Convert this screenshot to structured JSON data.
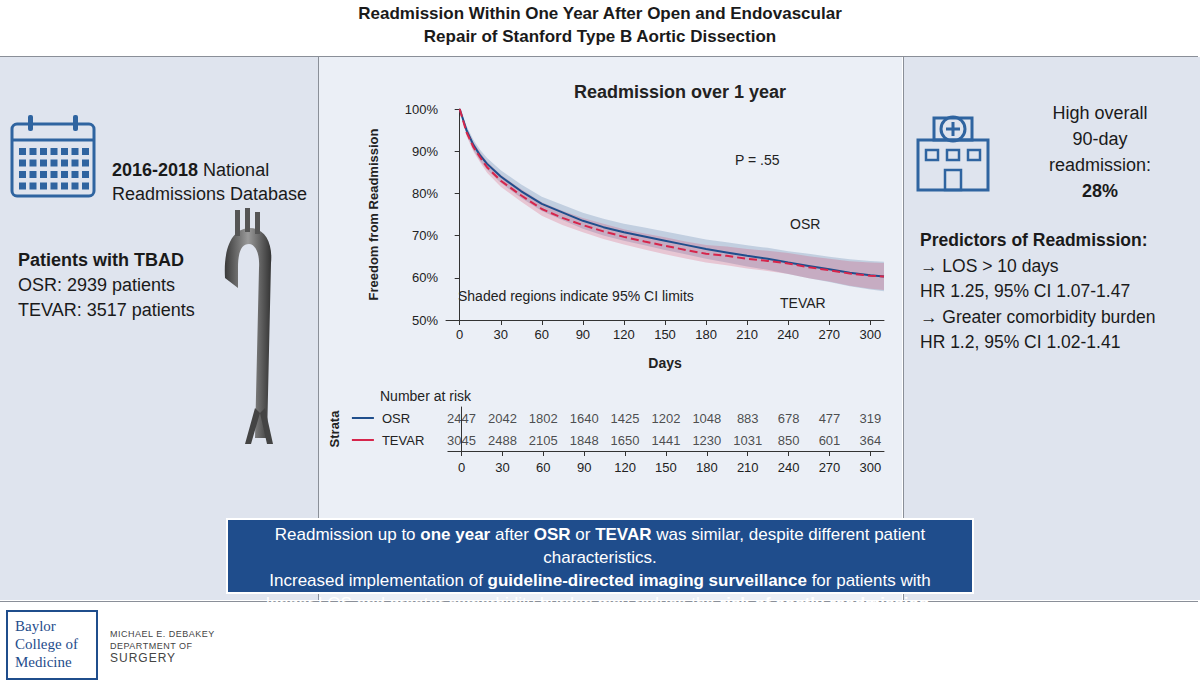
{
  "header": {
    "title": [
      "Readmission Within One Year After Open and Endovascular",
      "Repair of Stanford Type B Aortic Dissection"
    ]
  },
  "left_panel": {
    "source": [
      [
        {
          "text": "2016-2018",
          "bold": true
        },
        {
          "text": " National"
        }
      ],
      [
        {
          "text": "Readmissions Database"
        }
      ]
    ],
    "patients": [
      [
        {
          "text": "Patients with TBAD",
          "bold": true
        }
      ],
      [
        {
          "text": "OSR: 2939 patients"
        }
      ],
      [
        {
          "text": "TEVAR: 3517 patients"
        }
      ]
    ]
  },
  "right_panel": {
    "headline": [
      [
        {
          "text": "High overall"
        }
      ],
      [
        {
          "text": "90-day"
        }
      ],
      [
        {
          "text": "readmission:"
        }
      ],
      [
        {
          "text": "28%",
          "bold": true
        }
      ]
    ],
    "predictors": [
      [
        {
          "text": "Predictors of Readmission:",
          "bold": true
        }
      ],
      [
        {
          "text": "→ LOS > 10 days"
        }
      ],
      [
        {
          "text": "HR 1.25, 95% CI 1.07-1.47"
        }
      ],
      [
        {
          "text": "→ Greater comorbidity burden"
        }
      ],
      [
        {
          "text": "HR 1.2, 95% CI 1.02-1.41"
        }
      ]
    ]
  },
  "banner": [
    [
      {
        "text": "Readmission up to "
      },
      {
        "text": "one year",
        "bold": true
      },
      {
        "text": " after "
      },
      {
        "text": "OSR",
        "bold": true
      },
      {
        "text": " or "
      },
      {
        "text": "TEVAR",
        "bold": true
      },
      {
        "text": " was similar, despite different patient characteristics."
      }
    ],
    [
      {
        "text": "Increased implementation of "
      },
      {
        "text": "guideline-directed imaging surveillance",
        "bold": true
      },
      {
        "text": " for patients with"
      }
    ],
    [
      {
        "text": "longer LOS and greater comorbidity burden may reduce the "
      },
      {
        "text": "risk of costly readmission",
        "bold": true
      },
      {
        "text": "."
      }
    ]
  ],
  "footer": {
    "logo": [
      "Baylor",
      "College of",
      "Medicine"
    ],
    "department": [
      "MICHAEL E. DEBAKEY",
      "DEPARTMENT OF",
      "SURGERY"
    ]
  },
  "chart_data": {
    "type": "line",
    "title": [
      {
        "text": "Readmission over "
      },
      {
        "text": "1",
        "bold": true
      },
      {
        "text": " year"
      }
    ],
    "x_label": "Days",
    "y_label": "Freedom from Readmission",
    "annotations": [
      "P = .55",
      "Shaded regions indicate 95% CI limits"
    ],
    "xlim": [
      -10,
      310
    ],
    "xticks": [
      0,
      30,
      60,
      90,
      120,
      150,
      180,
      210,
      240,
      270,
      300
    ],
    "ylim": [
      50,
      100
    ],
    "yticks": [
      {
        "value": 50,
        "label": "50%"
      },
      {
        "value": 60,
        "label": "60%"
      },
      {
        "value": 70,
        "label": "70%"
      },
      {
        "value": 80,
        "label": "80%"
      },
      {
        "value": 90,
        "label": "90%"
      },
      {
        "value": 100,
        "label": "100%"
      }
    ],
    "grid": false,
    "x": [
      0,
      5,
      10,
      15,
      20,
      30,
      45,
      60,
      75,
      90,
      105,
      120,
      135,
      150,
      165,
      180,
      195,
      210,
      225,
      240,
      255,
      270,
      285,
      300,
      310
    ],
    "series": [
      {
        "name": "OSR",
        "color": "#1f4e8c",
        "line_style": "solid",
        "values": [
          100,
          95,
          91.5,
          89,
          87,
          84,
          80.5,
          77.5,
          75.5,
          73.5,
          72,
          70.8,
          69.8,
          68.8,
          67.8,
          66.8,
          66,
          65.2,
          64.5,
          63.6,
          62.8,
          62,
          61.2,
          60.6,
          60.3
        ],
        "ci_lower": [
          100,
          94,
          90.3,
          87.7,
          85.6,
          82.5,
          78.9,
          75.8,
          73.7,
          71.6,
          70,
          68.8,
          67.7,
          66.6,
          65.6,
          64.5,
          63.6,
          62.7,
          61.9,
          60.9,
          59.9,
          59,
          58,
          57.2,
          56.8
        ],
        "ci_upper": [
          100,
          96,
          92.7,
          90.3,
          88.4,
          85.5,
          82.1,
          79.2,
          77.3,
          75.4,
          74,
          72.8,
          71.9,
          71,
          70,
          69.1,
          68.4,
          67.7,
          67.1,
          66.3,
          65.7,
          65,
          64.4,
          64,
          63.8
        ]
      },
      {
        "name": "TEVAR",
        "color": "#d6254b",
        "line_style": "dashed",
        "values": [
          100,
          94.5,
          91,
          88.5,
          86.2,
          83,
          79.5,
          76.3,
          74.2,
          72.5,
          71,
          69.7,
          68.6,
          67.6,
          66.6,
          65.7,
          65.2,
          64.5,
          64,
          63.4,
          62.5,
          61.8,
          61,
          60.5,
          60.3
        ],
        "ci_lower": [
          100,
          93.6,
          89.9,
          87.3,
          84.9,
          81.6,
          78,
          74.7,
          72.5,
          70.8,
          69.2,
          67.9,
          66.7,
          65.6,
          64.6,
          63.6,
          63,
          62.2,
          61.6,
          60.9,
          59.9,
          59.1,
          58.1,
          57.4,
          57.1
        ],
        "ci_upper": [
          100,
          95.4,
          92.1,
          89.7,
          87.5,
          84.4,
          81,
          77.9,
          75.9,
          74.2,
          72.8,
          71.5,
          70.5,
          69.6,
          68.6,
          67.8,
          67.4,
          66.8,
          66.4,
          65.9,
          65.1,
          64.5,
          63.9,
          63.6,
          63.5
        ]
      }
    ],
    "number_at_risk": {
      "title": "Number at risk",
      "axis_label": "Strata",
      "data_labels": true,
      "x": [
        0,
        30,
        60,
        90,
        120,
        150,
        180,
        210,
        240,
        270,
        300
      ],
      "rows": [
        {
          "name": "OSR",
          "values": [
            2447,
            2042,
            1802,
            1640,
            1425,
            1202,
            1048,
            883,
            678,
            477,
            319
          ]
        },
        {
          "name": "TEVAR",
          "values": [
            3045,
            2488,
            2105,
            1848,
            1650,
            1441,
            1230,
            1031,
            850,
            601,
            364
          ]
        }
      ]
    }
  }
}
